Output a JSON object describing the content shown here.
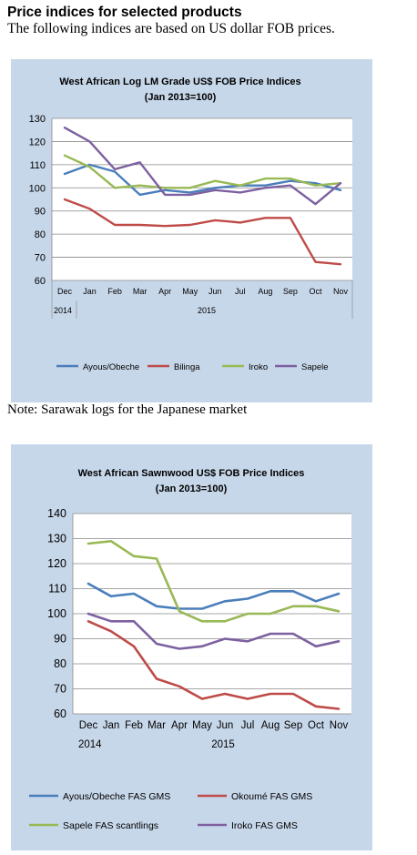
{
  "page": {
    "title": "Price indices for selected products",
    "subtitle": "The following indices are based on US dollar FOB prices.",
    "note": "Note: Sarawak logs for the Japanese market"
  },
  "chart_data": [
    {
      "type": "line",
      "title": "West African Log LM Grade US$ FOB Price Indices",
      "subtitle": "(Jan 2013=100)",
      "categories": [
        "Dec",
        "Jan",
        "Feb",
        "Mar",
        "Apr",
        "May",
        "Jun",
        "Jul",
        "Aug",
        "Sep",
        "Oct",
        "Nov"
      ],
      "year_labels": [
        "2014",
        "2015"
      ],
      "ylim": [
        60,
        130
      ],
      "yticks": [
        60,
        70,
        80,
        90,
        100,
        110,
        120,
        130
      ],
      "grid": true,
      "legend_position": "bottom",
      "series": [
        {
          "name": "Ayous/Obeche",
          "color": "#4a7ebb",
          "values": [
            106,
            110,
            107,
            97,
            99,
            98,
            100,
            101,
            101,
            103,
            102,
            99
          ]
        },
        {
          "name": "Bilinga",
          "color": "#be4b48",
          "values": [
            95,
            91,
            84,
            84,
            83.5,
            84,
            86,
            85,
            87,
            87,
            68,
            67
          ]
        },
        {
          "name": "Iroko",
          "color": "#98b954",
          "values": [
            114,
            109,
            100,
            101,
            100,
            100,
            103,
            101,
            104,
            104,
            101,
            102
          ]
        },
        {
          "name": "Sapele",
          "color": "#7d60a0",
          "values": [
            126,
            120,
            108,
            111,
            97,
            97,
            99,
            98,
            100,
            101,
            93,
            102
          ]
        }
      ]
    },
    {
      "type": "line",
      "title": "West African Sawnwood US$ FOB Price Indices",
      "subtitle": "(Jan 2013=100)",
      "categories": [
        "Dec",
        "Jan",
        "Feb",
        "Mar",
        "Apr",
        "May",
        "Jun",
        "Jul",
        "Aug",
        "Sep",
        "Oct",
        "Nov"
      ],
      "year_labels": [
        "2014",
        "2015"
      ],
      "ylim": [
        60,
        140
      ],
      "yticks": [
        60,
        70,
        80,
        90,
        100,
        110,
        120,
        130,
        140
      ],
      "grid": true,
      "legend_position": "bottom",
      "series": [
        {
          "name": "Ayous/Obeche FAS GMS",
          "color": "#4a7ebb",
          "values": [
            112,
            107,
            108,
            103,
            102,
            102,
            105,
            106,
            109,
            109,
            105,
            108
          ]
        },
        {
          "name": "Okoumé FAS GMS",
          "color": "#be4b48",
          "values": [
            97,
            93,
            87,
            74,
            71,
            66,
            68,
            66,
            68,
            68,
            63,
            62
          ]
        },
        {
          "name": "Sapele FAS scantlings",
          "color": "#98b954",
          "values": [
            128,
            129,
            123,
            122,
            101,
            97,
            97,
            100,
            100,
            103,
            103,
            101
          ]
        },
        {
          "name": "Iroko FAS GMS",
          "color": "#7d60a0",
          "values": [
            100,
            97,
            97,
            88,
            86,
            87,
            90,
            89,
            92,
            92,
            87,
            89
          ]
        }
      ]
    }
  ]
}
